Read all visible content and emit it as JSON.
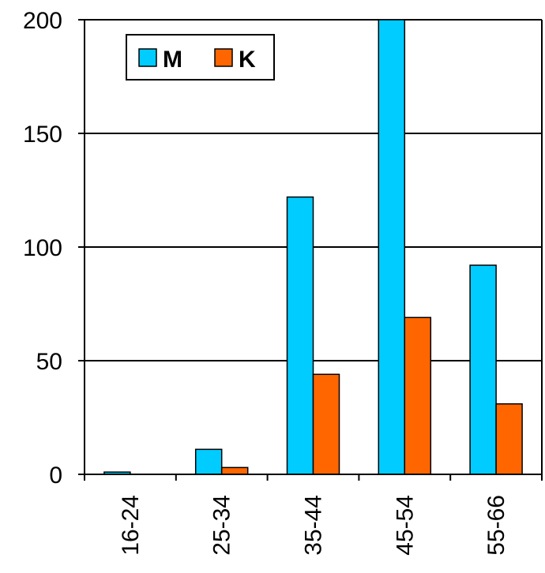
{
  "chart_data": {
    "type": "bar",
    "categories": [
      "16-24",
      "25-34",
      "35-44",
      "45-54",
      "55-66"
    ],
    "series": [
      {
        "name": "M",
        "values": [
          1,
          11,
          122,
          200,
          92
        ],
        "color": "#00ccff"
      },
      {
        "name": "K",
        "values": [
          0,
          3,
          44,
          69,
          31
        ],
        "color": "#ff6600"
      }
    ],
    "yticks": [
      0,
      50,
      100,
      150,
      200
    ],
    "ylim": [
      0,
      200
    ],
    "grid": true,
    "legend_position": "top-left",
    "title": "",
    "xlabel": "",
    "ylabel": ""
  }
}
